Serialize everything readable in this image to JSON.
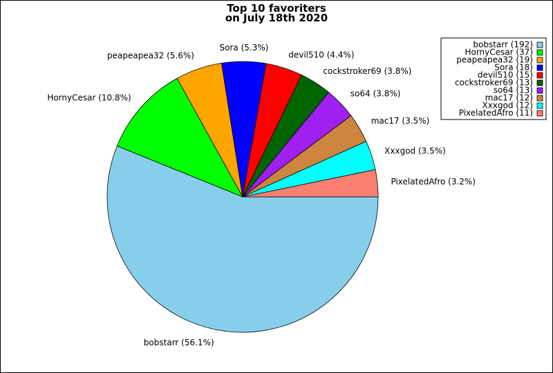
{
  "chart_data": {
    "type": "pie",
    "title": [
      "Top 10 favoriters",
      "on July 18th 2020"
    ],
    "slices": [
      {
        "name": "bobstarr",
        "value": 192,
        "percent_label": "bobstarr (56.1%)",
        "legend_label": "bobstarr (192)",
        "color": "#87ceeb"
      },
      {
        "name": "HornyCesar",
        "value": 37,
        "percent_label": "HornyCesar (10.8%)",
        "legend_label": "HornyCesar (37)",
        "color": "#00ff00"
      },
      {
        "name": "peapeapea32",
        "value": 19,
        "percent_label": "peapeapea32 (5.6%)",
        "legend_label": "peapeapea32 (19)",
        "color": "#ffa500"
      },
      {
        "name": "Sora",
        "value": 18,
        "percent_label": "Sora (5.3%)",
        "legend_label": "Sora (18)",
        "color": "#0000ff"
      },
      {
        "name": "devil510",
        "value": 15,
        "percent_label": "devil510 (4.4%)",
        "legend_label": "devil510 (15)",
        "color": "#ff0000"
      },
      {
        "name": "cockstroker69",
        "value": 13,
        "percent_label": "cockstroker69 (3.8%)",
        "legend_label": "cockstroker69 (13)",
        "color": "#006400"
      },
      {
        "name": "so64",
        "value": 13,
        "percent_label": "so64 (3.8%)",
        "legend_label": "so64 (13)",
        "color": "#a020f0"
      },
      {
        "name": "mac17",
        "value": 12,
        "percent_label": "mac17 (3.5%)",
        "legend_label": "mac17 (12)",
        "color": "#cd853f"
      },
      {
        "name": "Xxxgod",
        "value": 12,
        "percent_label": "Xxxgod (3.5%)",
        "legend_label": "Xxxgod (12)",
        "color": "#00ffff"
      },
      {
        "name": "PixelatedAfro",
        "value": 11,
        "percent_label": "PixelatedAfro (3.2%)",
        "legend_label": "PixelatedAfro (11)",
        "color": "#fa8072"
      }
    ],
    "start_angle_deg": 0,
    "direction": "clockwise-on-screen",
    "legend_placement": "top-right"
  }
}
